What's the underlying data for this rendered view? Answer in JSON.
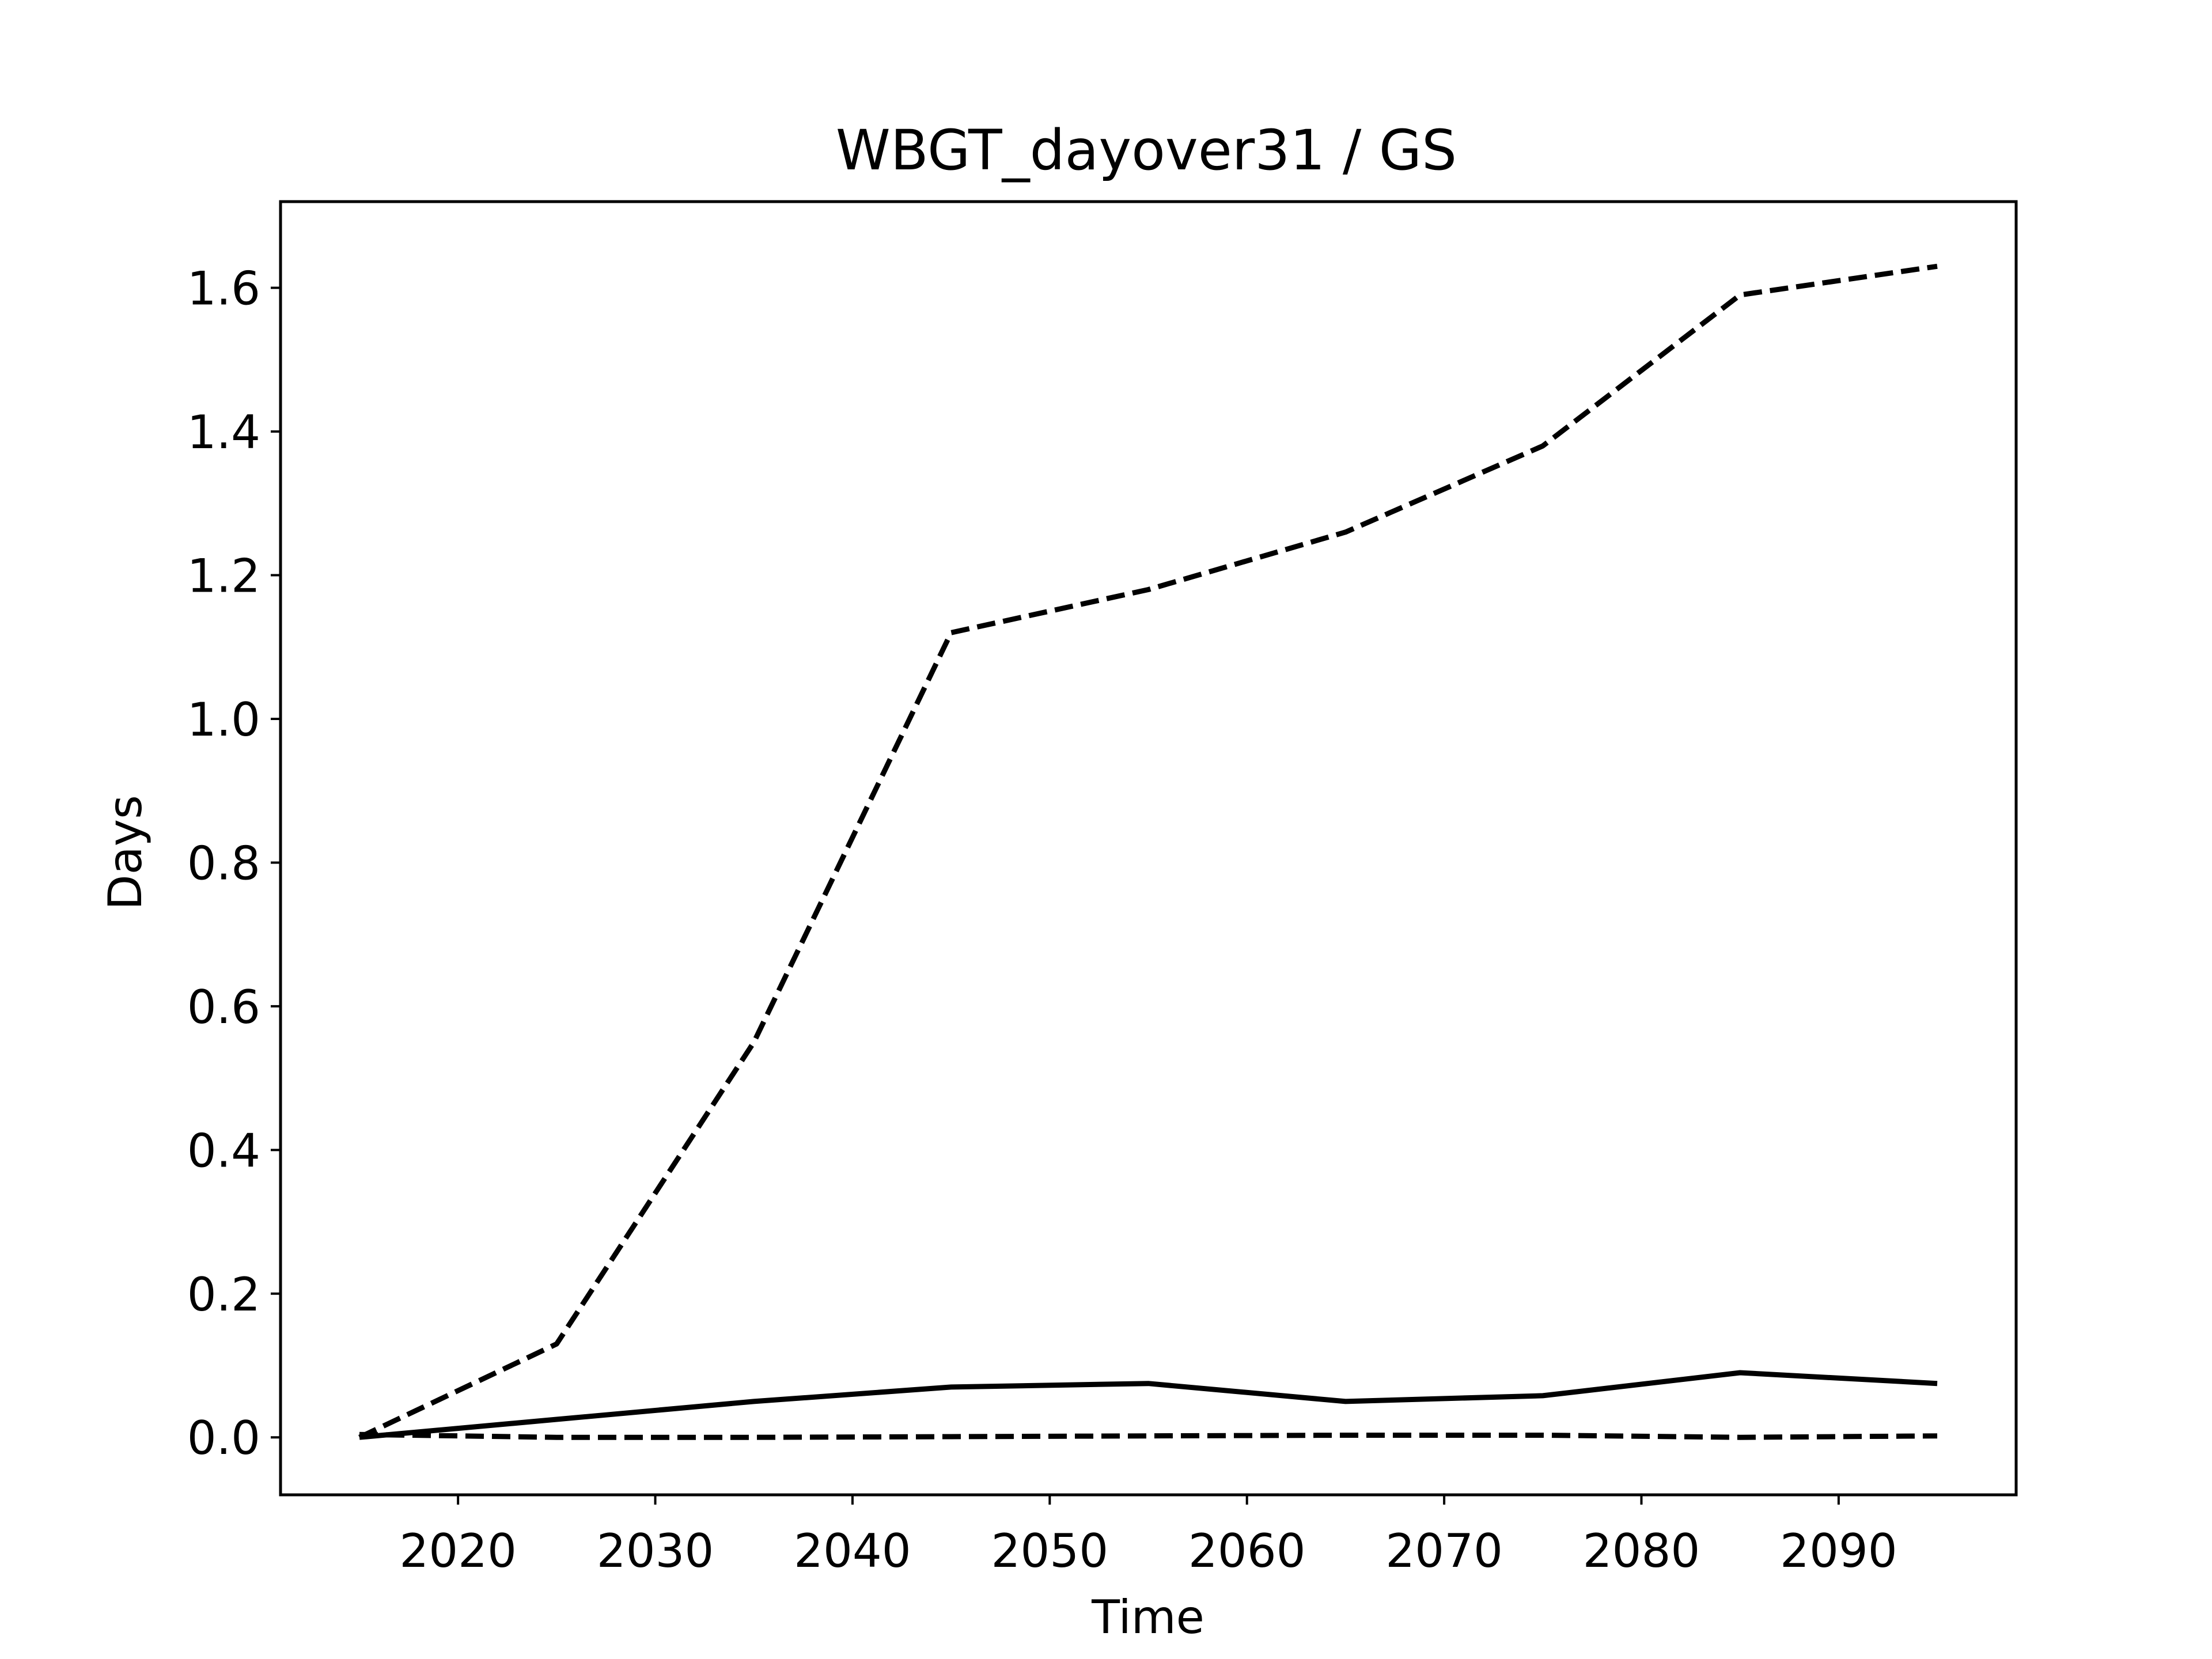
{
  "chart_data": {
    "type": "line",
    "title": "WBGT_dayover31 / GS",
    "xlabel": "Time",
    "ylabel": "Days",
    "xlim": [
      2011,
      2099
    ],
    "ylim": [
      -0.08,
      1.72
    ],
    "xticks": [
      2020,
      2030,
      2040,
      2050,
      2060,
      2070,
      2080,
      2090
    ],
    "xtick_labels": [
      "2020",
      "2030",
      "2040",
      "2050",
      "2060",
      "2070",
      "2080",
      "2090"
    ],
    "yticks": [
      0.0,
      0.2,
      0.4,
      0.6,
      0.8,
      1.0,
      1.2,
      1.4,
      1.6
    ],
    "ytick_labels": [
      "0.0",
      "0.2",
      "0.4",
      "0.6",
      "0.8",
      "1.0",
      "1.2",
      "1.4",
      "1.6"
    ],
    "grid": false,
    "x": [
      2015,
      2025,
      2035,
      2045,
      2055,
      2065,
      2075,
      2085,
      2095
    ],
    "series": [
      {
        "style": "dashed",
        "color": "#000000",
        "values": [
          0.0,
          0.13,
          0.55,
          1.12,
          1.18,
          1.26,
          1.38,
          1.59,
          1.63
        ]
      },
      {
        "style": "solid",
        "color": "#000000",
        "values": [
          0.0,
          0.025,
          0.05,
          0.07,
          0.075,
          0.05,
          0.058,
          0.09,
          0.075
        ]
      },
      {
        "style": "dashed",
        "color": "#000000",
        "values": [
          0.004,
          0.0,
          0.0,
          0.001,
          0.002,
          0.003,
          0.003,
          0.0,
          0.002
        ]
      }
    ]
  }
}
